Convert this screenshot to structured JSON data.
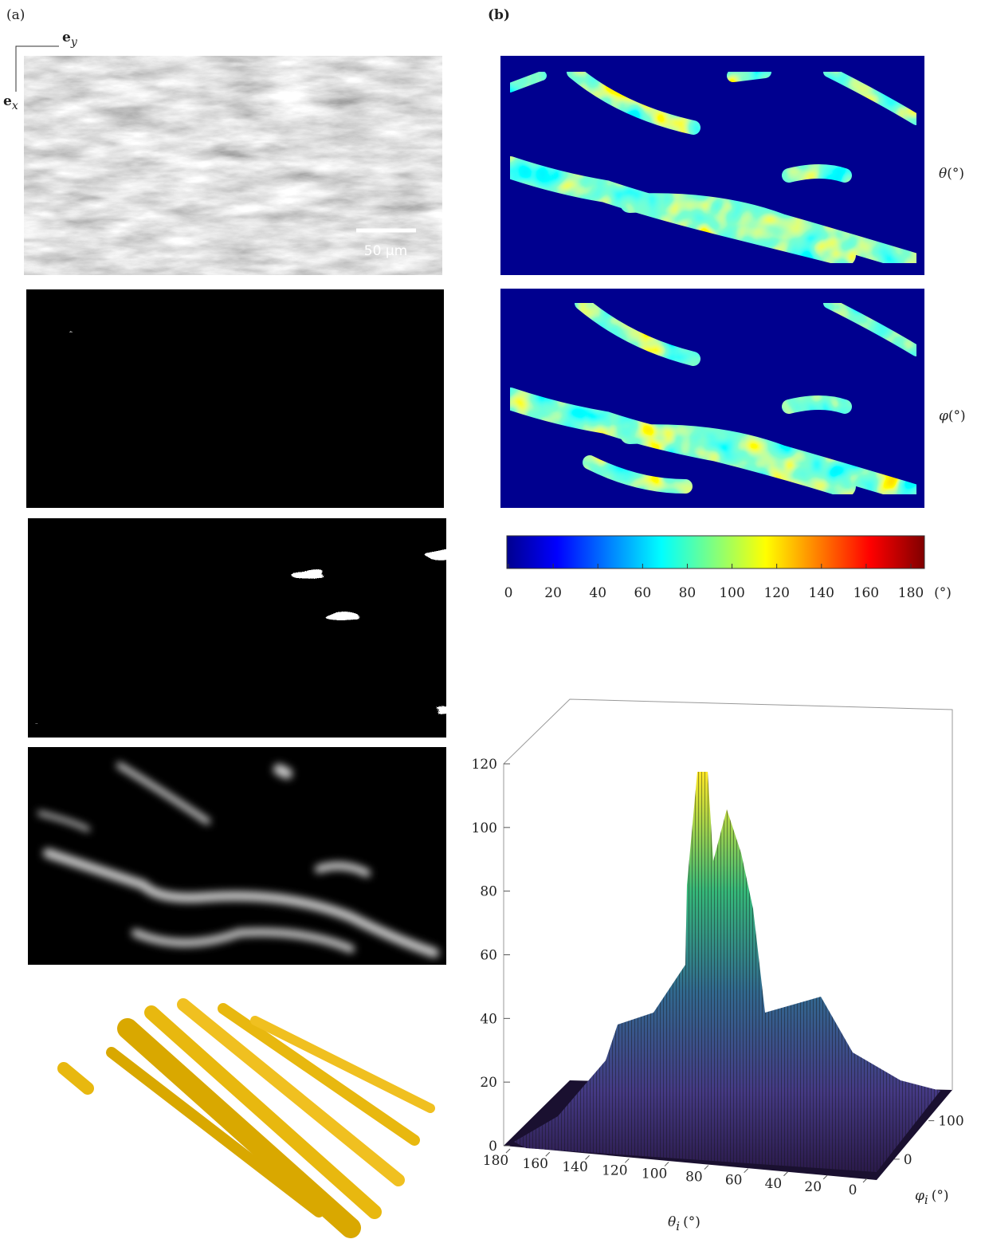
{
  "panel_labels": {
    "a": "(a)",
    "b": "(b)"
  },
  "axes_glyph": {
    "ey": {
      "base": "e",
      "sub": "y"
    },
    "ex": {
      "base": "e",
      "sub": "x"
    }
  },
  "scale_bar": "50 µm",
  "maps": [
    {
      "symbol": "θ",
      "unit": "(°)"
    },
    {
      "symbol": "φ",
      "unit": "(°)"
    }
  ],
  "colorbar": {
    "lim": [
      0,
      180
    ],
    "ticks": [
      0,
      20,
      40,
      60,
      80,
      100,
      120,
      140,
      160,
      180
    ],
    "unit": "(°)"
  },
  "histogram": {
    "zlim": [
      0,
      120
    ],
    "zticks": [
      0,
      20,
      40,
      60,
      80,
      100,
      120
    ],
    "xlim": [
      180,
      0
    ],
    "xticks": [
      180,
      160,
      140,
      120,
      100,
      80,
      60,
      40,
      20,
      0
    ],
    "xlabel": {
      "symbol": "θ",
      "sub": "i",
      "unit": "(°)"
    },
    "ylim": [
      -50,
      180
    ],
    "yticks": [
      0,
      100
    ],
    "ylabel": {
      "symbol": "φ",
      "sub": "i",
      "unit": "(°)"
    }
  }
}
